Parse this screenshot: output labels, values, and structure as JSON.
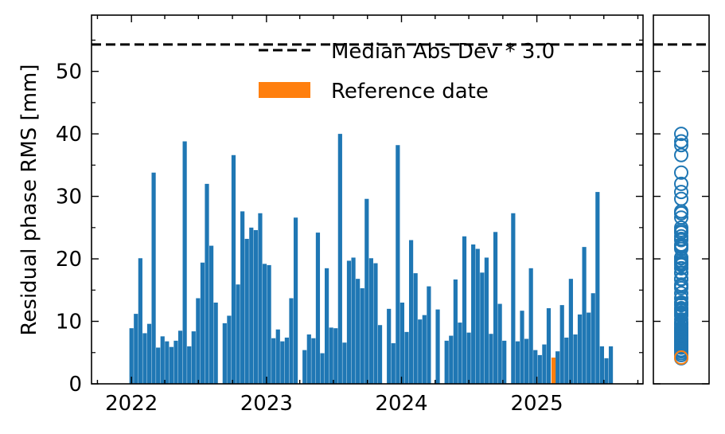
{
  "chart_data": {
    "type": "bar",
    "ylabel": "Residual phase RMS [mm]",
    "xlabel": "",
    "ylim": [
      0,
      59
    ],
    "xlim": [
      "2021-09-15",
      "2025-10-15"
    ],
    "x_ticks": [
      "2022",
      "2023",
      "2024",
      "2025"
    ],
    "y_ticks": [
      "0",
      "10",
      "20",
      "30",
      "40",
      "50"
    ],
    "threshold": {
      "value": 54.3,
      "label": "Median Abs Dev * 3.0"
    },
    "legend": {
      "threshold": "Median Abs Dev * 3.0",
      "reference": "Reference date",
      "placement": "top-right"
    },
    "colors": {
      "bars": "#1f77b4",
      "reference": "#ff7f0e",
      "threshold": "#000000"
    },
    "reference_date": {
      "date": "2025-02-15",
      "value": 4.2
    },
    "series": [
      {
        "dates": [
          "2022-01-01",
          "2022-01-13",
          "2022-01-25",
          "2022-02-06",
          "2022-02-18",
          "2022-03-02",
          "2022-03-14",
          "2022-03-26",
          "2022-04-07",
          "2022-04-19",
          "2022-05-01",
          "2022-05-13",
          "2022-05-25",
          "2022-06-06",
          "2022-06-18",
          "2022-06-30",
          "2022-07-12",
          "2022-07-24",
          "2022-08-05",
          "2022-08-17",
          "2022-09-10",
          "2022-09-22",
          "2022-10-04",
          "2022-10-16",
          "2022-10-28",
          "2022-11-09",
          "2022-11-21",
          "2022-12-03",
          "2022-12-15",
          "2022-12-27",
          "2023-01-08",
          "2023-01-20",
          "2023-02-01",
          "2023-02-13",
          "2023-02-25",
          "2023-03-09",
          "2023-03-21",
          "2023-04-14",
          "2023-04-26",
          "2023-05-08",
          "2023-05-20",
          "2023-06-01",
          "2023-06-13",
          "2023-06-25",
          "2023-07-07",
          "2023-07-19",
          "2023-07-31",
          "2023-08-12",
          "2023-08-24",
          "2023-09-05",
          "2023-09-17",
          "2023-09-29",
          "2023-10-11",
          "2023-10-23",
          "2023-11-04",
          "2023-11-28",
          "2023-12-10",
          "2023-12-22",
          "2024-01-03",
          "2024-01-15",
          "2024-01-27",
          "2024-02-08",
          "2024-02-20",
          "2024-03-03",
          "2024-03-15",
          "2024-04-08",
          "2024-05-02",
          "2024-05-14",
          "2024-05-26",
          "2024-06-07",
          "2024-06-19",
          "2024-07-01",
          "2024-07-13",
          "2024-07-25",
          "2024-08-06",
          "2024-08-18",
          "2024-08-30",
          "2024-09-11",
          "2024-09-23",
          "2024-10-05",
          "2024-10-29",
          "2024-11-10",
          "2024-11-22",
          "2024-12-04",
          "2024-12-16",
          "2024-12-28",
          "2025-01-09",
          "2025-01-21",
          "2025-02-02",
          "2025-02-26",
          "2025-03-10",
          "2025-03-22",
          "2025-04-03",
          "2025-04-15",
          "2025-04-27",
          "2025-05-09",
          "2025-05-21",
          "2025-06-02",
          "2025-06-14",
          "2025-06-26",
          "2025-07-08",
          "2025-07-20"
        ],
        "values": [
          8.9,
          11.2,
          20.1,
          8.1,
          9.6,
          33.8,
          5.8,
          7.6,
          6.8,
          5.9,
          6.9,
          8.5,
          38.8,
          6.0,
          8.4,
          13.7,
          19.4,
          32.0,
          22.1,
          13.0,
          9.7,
          10.9,
          36.6,
          15.9,
          27.6,
          23.2,
          25.0,
          24.6,
          27.3,
          19.2,
          19.0,
          7.3,
          8.7,
          6.8,
          7.4,
          13.7,
          26.6,
          5.4,
          7.9,
          7.3,
          24.2,
          4.9,
          18.5,
          9.0,
          8.9,
          40.0,
          6.6,
          19.7,
          20.2,
          16.8,
          15.3,
          29.6,
          20.1,
          19.3,
          9.4,
          12.0,
          6.5,
          38.2,
          13.0,
          8.3,
          23.0,
          17.7,
          10.3,
          11.0,
          15.6,
          11.9,
          6.9,
          7.7,
          16.7,
          9.8,
          23.6,
          8.2,
          22.3,
          21.6,
          17.8,
          20.2,
          8.0,
          24.3,
          12.8,
          6.9,
          27.3,
          6.8,
          11.7,
          7.2,
          18.5,
          5.4,
          4.6,
          6.3,
          12.1,
          5.2,
          12.6,
          7.4,
          16.8,
          7.9,
          11.1,
          21.9,
          11.4,
          14.5,
          30.7,
          6.0,
          4.1,
          6.0
        ]
      }
    ]
  }
}
